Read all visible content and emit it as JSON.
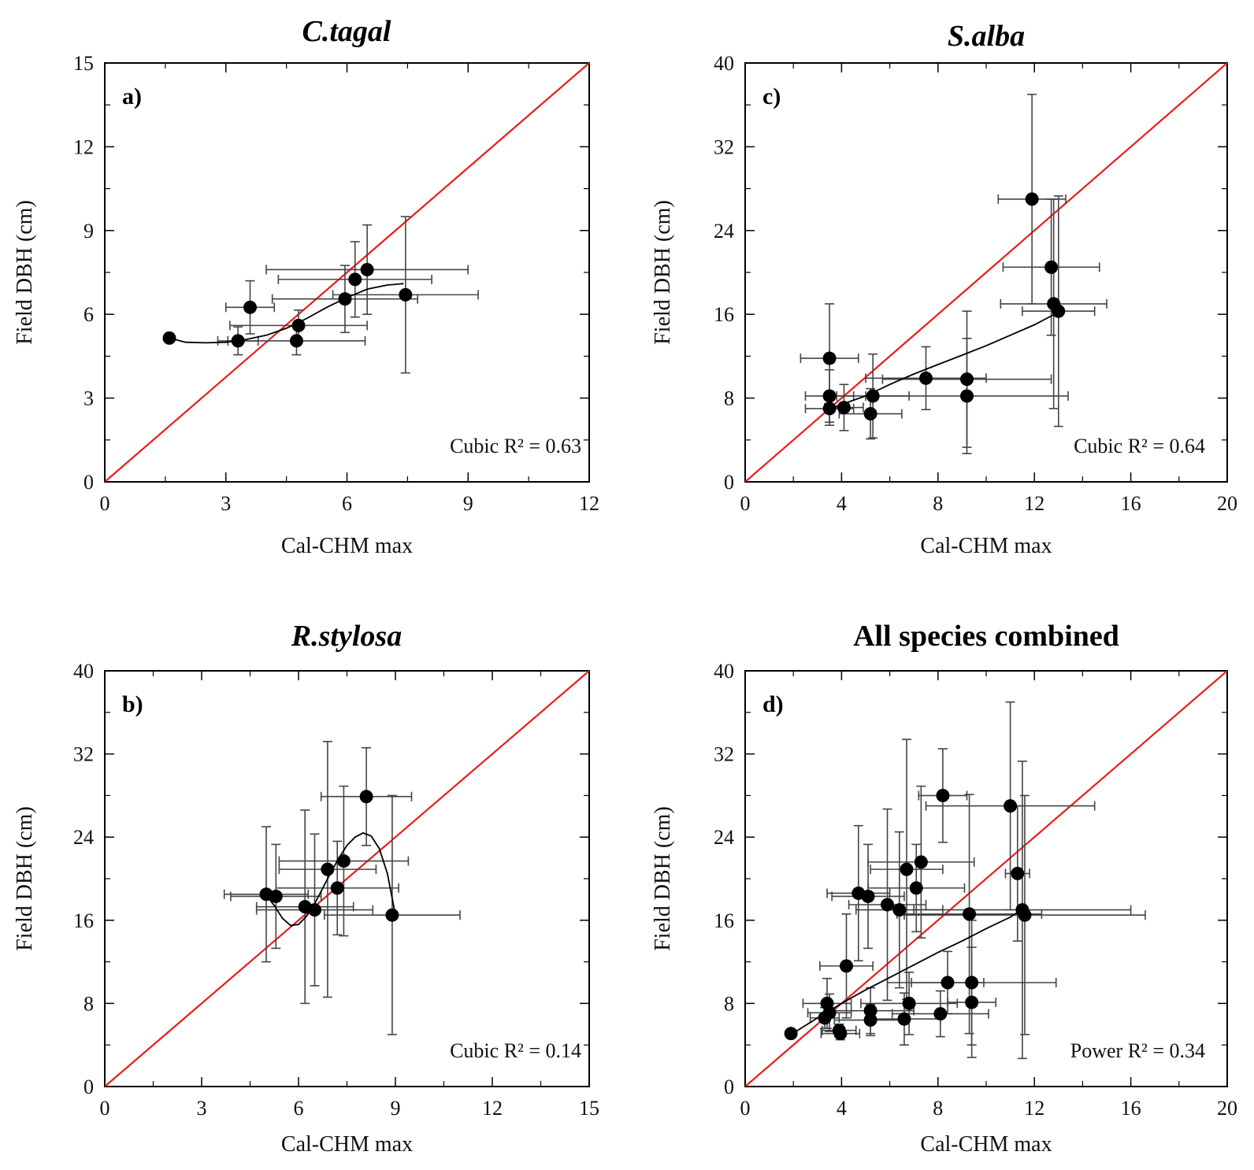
{
  "chart_data": [
    {
      "id": "a",
      "type": "scatter",
      "title": "C.tagal",
      "title_italic": true,
      "panel_label": "a)",
      "xlabel": "Cal-CHM max",
      "ylabel": "Field DBH (cm)",
      "xlim": [
        0,
        12
      ],
      "ylim": [
        0,
        15
      ],
      "xticks": [
        0,
        3,
        6,
        9,
        12
      ],
      "yticks": [
        0,
        3,
        6,
        9,
        12,
        15
      ],
      "annotation": "Cubic R² = 0.63",
      "fit_type": "cubic",
      "fit_curve": [
        [
          1.6,
          5.15
        ],
        [
          2.0,
          5.0
        ],
        [
          2.5,
          4.98
        ],
        [
          3.0,
          5.0
        ],
        [
          3.5,
          5.1
        ],
        [
          4.0,
          5.25
        ],
        [
          4.5,
          5.5
        ],
        [
          5.0,
          5.85
        ],
        [
          5.5,
          6.25
        ],
        [
          6.0,
          6.6
        ],
        [
          6.5,
          6.9
        ],
        [
          7.0,
          7.05
        ],
        [
          7.4,
          7.1
        ]
      ],
      "identity_line": true,
      "points": [
        {
          "x": 1.6,
          "y": 5.15
        },
        {
          "x": 3.3,
          "y": 5.05,
          "xerr": 0.5,
          "yerr": 0.5
        },
        {
          "x": 3.6,
          "y": 6.25,
          "xerr": 0.6,
          "yerr": 0.95
        },
        {
          "x": 4.8,
          "y": 5.6,
          "xerr": 1.7,
          "yerr": 0.55
        },
        {
          "x": 4.75,
          "y": 5.05,
          "xerr": 1.7,
          "yerr": 0.5
        },
        {
          "x": 5.95,
          "y": 6.55,
          "xerr": 1.8,
          "yerr": 1.2
        },
        {
          "x": 6.2,
          "y": 7.25,
          "xerr": 1.9,
          "yerr": 1.35
        },
        {
          "x": 6.5,
          "y": 7.6,
          "xerr": 2.5,
          "yerr": 1.6
        },
        {
          "x": 7.45,
          "y": 6.7,
          "xerr": 1.8,
          "yerr": 2.8
        }
      ]
    },
    {
      "id": "c",
      "type": "scatter",
      "title": "S.alba",
      "title_italic": true,
      "panel_label": "c)",
      "xlabel": "Cal-CHM max",
      "ylabel": "Field DBH (cm)",
      "xlim": [
        0,
        20
      ],
      "ylim": [
        0,
        40
      ],
      "xticks": [
        0,
        4,
        8,
        12,
        16,
        20
      ],
      "yticks": [
        0,
        8,
        16,
        24,
        32,
        40
      ],
      "annotation": "Cubic R² = 0.64",
      "fit_type": "cubic",
      "fit_curve": [
        [
          3.5,
          7.0
        ],
        [
          4.0,
          7.4
        ],
        [
          5.0,
          8.2
        ],
        [
          6.0,
          9.3
        ],
        [
          7.0,
          10.3
        ],
        [
          8.0,
          11.2
        ],
        [
          9.0,
          12.1
        ],
        [
          10.0,
          13.0
        ],
        [
          11.0,
          14.0
        ],
        [
          12.0,
          15.0
        ],
        [
          13.0,
          16.2
        ]
      ],
      "identity_line": true,
      "points": [
        {
          "x": 3.5,
          "y": 11.8,
          "xerr": 1.2,
          "yerr": 5.2
        },
        {
          "x": 3.5,
          "y": 8.2,
          "xerr": 1.0,
          "yerr": 2.5
        },
        {
          "x": 3.5,
          "y": 7.0,
          "xerr": 1.0,
          "yerr": 1.6
        },
        {
          "x": 4.1,
          "y": 7.1,
          "xerr": 0.8,
          "yerr": 2.2
        },
        {
          "x": 5.2,
          "y": 6.5,
          "xerr": 1.3,
          "yerr": 2.4
        },
        {
          "x": 5.3,
          "y": 8.2,
          "xerr": 1.5,
          "yerr": 4.0
        },
        {
          "x": 7.5,
          "y": 9.9,
          "xerr": 2.5,
          "yerr": 3.0
        },
        {
          "x": 9.2,
          "y": 9.8,
          "xerr": 3.5,
          "yerr": 6.5
        },
        {
          "x": 9.2,
          "y": 8.2,
          "xerr": 4.2,
          "yerr": 5.5
        },
        {
          "x": 11.9,
          "y": 27.0,
          "xerr": 1.4,
          "yerr": 10.0
        },
        {
          "x": 12.7,
          "y": 20.5,
          "xerr": 2.0,
          "yerr": 6.5
        },
        {
          "x": 12.8,
          "y": 17.0,
          "xerr": 2.2,
          "yerr": 10.0
        },
        {
          "x": 13.0,
          "y": 16.3,
          "xerr": 1.5,
          "yerr": 11.0
        }
      ]
    },
    {
      "id": "b",
      "type": "scatter",
      "title": "R.stylosa",
      "title_italic": true,
      "panel_label": "b)",
      "xlabel": "Cal-CHM max",
      "ylabel": "Field DBH (cm)",
      "xlim": [
        0,
        15
      ],
      "ylim": [
        0,
        40
      ],
      "xticks": [
        0,
        3,
        6,
        9,
        12,
        15
      ],
      "yticks": [
        0,
        8,
        16,
        24,
        32,
        40
      ],
      "annotation": "Cubic R² = 0.14",
      "fit_type": "cubic",
      "fit_curve": [
        [
          5.0,
          18.4
        ],
        [
          5.25,
          17.4
        ],
        [
          5.5,
          16.2
        ],
        [
          5.75,
          15.5
        ],
        [
          6.0,
          15.6
        ],
        [
          6.25,
          16.4
        ],
        [
          6.5,
          17.6
        ],
        [
          6.75,
          19.1
        ],
        [
          7.0,
          20.6
        ],
        [
          7.25,
          22.0
        ],
        [
          7.5,
          23.2
        ],
        [
          7.75,
          24.0
        ],
        [
          8.0,
          24.4
        ],
        [
          8.25,
          24.1
        ],
        [
          8.5,
          22.9
        ],
        [
          8.75,
          20.5
        ],
        [
          9.0,
          16.5
        ]
      ],
      "identity_line": true,
      "points": [
        {
          "x": 5.0,
          "y": 18.5,
          "xerr": 1.3,
          "yerr": 6.5
        },
        {
          "x": 5.3,
          "y": 18.3,
          "xerr": 1.4,
          "yerr": 5.0
        },
        {
          "x": 6.2,
          "y": 17.3,
          "xerr": 1.5,
          "yerr": 9.3
        },
        {
          "x": 6.5,
          "y": 17.0,
          "xerr": 1.8,
          "yerr": 7.3
        },
        {
          "x": 6.9,
          "y": 20.9,
          "xerr": 1.5,
          "yerr": 12.3
        },
        {
          "x": 7.2,
          "y": 19.1,
          "xerr": 1.9,
          "yerr": 4.5
        },
        {
          "x": 7.4,
          "y": 21.7,
          "xerr": 2.0,
          "yerr": 7.2
        },
        {
          "x": 8.1,
          "y": 27.9,
          "xerr": 1.4,
          "yerr": 4.7
        },
        {
          "x": 8.9,
          "y": 16.5,
          "xerr": 2.1,
          "yerr": 11.5
        }
      ]
    },
    {
      "id": "d",
      "type": "scatter",
      "title": "All species combined",
      "title_italic": false,
      "panel_label": "d)",
      "xlabel": "Cal-CHM max",
      "ylabel": "Field DBH (cm)",
      "xlim": [
        0,
        20
      ],
      "ylim": [
        0,
        40
      ],
      "xticks": [
        0,
        4,
        8,
        12,
        16,
        20
      ],
      "yticks": [
        0,
        8,
        16,
        24,
        32,
        40
      ],
      "annotation": "Power R² = 0.34",
      "fit_type": "power",
      "fit_curve": [
        [
          1.9,
          5.0
        ],
        [
          3.0,
          6.6
        ],
        [
          4.0,
          8.0
        ],
        [
          5.0,
          9.3
        ],
        [
          6.0,
          10.5
        ],
        [
          7.0,
          11.7
        ],
        [
          8.0,
          12.9
        ],
        [
          9.0,
          14.0
        ],
        [
          10.0,
          15.2
        ],
        [
          11.0,
          16.3
        ],
        [
          11.6,
          17.2
        ]
      ],
      "identity_line": true,
      "points": [
        {
          "x": 1.9,
          "y": 5.1
        },
        {
          "x": 3.3,
          "y": 6.6,
          "xerr": 0.6,
          "yerr": 1.0
        },
        {
          "x": 3.4,
          "y": 8.0,
          "xerr": 1.0,
          "yerr": 2.4
        },
        {
          "x": 3.5,
          "y": 7.1,
          "xerr": 0.9,
          "yerr": 1.8
        },
        {
          "x": 3.9,
          "y": 5.4,
          "xerr": 0.7,
          "yerr": 0.6
        },
        {
          "x": 3.95,
          "y": 5.1,
          "xerr": 0.8,
          "yerr": 0.6
        },
        {
          "x": 4.2,
          "y": 11.6,
          "xerr": 1.1,
          "yerr": 5.0
        },
        {
          "x": 4.7,
          "y": 18.6,
          "xerr": 1.3,
          "yerr": 6.5
        },
        {
          "x": 5.1,
          "y": 18.3,
          "xerr": 1.5,
          "yerr": 5.0
        },
        {
          "x": 5.2,
          "y": 7.3,
          "xerr": 1.8,
          "yerr": 2.2
        },
        {
          "x": 5.2,
          "y": 6.4,
          "xerr": 1.5,
          "yerr": 1.5
        },
        {
          "x": 5.9,
          "y": 17.5,
          "xerr": 1.6,
          "yerr": 9.2
        },
        {
          "x": 6.4,
          "y": 17.0,
          "xerr": 1.8,
          "yerr": 7.5
        },
        {
          "x": 6.6,
          "y": 6.5,
          "xerr": 1.5,
          "yerr": 2.5
        },
        {
          "x": 6.7,
          "y": 20.9,
          "xerr": 1.5,
          "yerr": 12.5
        },
        {
          "x": 6.8,
          "y": 8.0,
          "xerr": 2.0,
          "yerr": 3.0
        },
        {
          "x": 7.1,
          "y": 19.1,
          "xerr": 2.0,
          "yerr": 4.2
        },
        {
          "x": 7.3,
          "y": 21.6,
          "xerr": 2.2,
          "yerr": 7.3
        },
        {
          "x": 8.2,
          "y": 28.0,
          "xerr": 1.0,
          "yerr": 4.5
        },
        {
          "x": 8.1,
          "y": 7.0,
          "xerr": 2.0,
          "yerr": 2.2
        },
        {
          "x": 8.4,
          "y": 10.0,
          "xerr": 1.5,
          "yerr": 3.0
        },
        {
          "x": 9.3,
          "y": 16.6,
          "xerr": 3.0,
          "yerr": 11.5
        },
        {
          "x": 9.4,
          "y": 10.0,
          "xerr": 3.5,
          "yerr": 6.0
        },
        {
          "x": 9.4,
          "y": 8.1,
          "xerr": 1.0,
          "yerr": 5.3
        },
        {
          "x": 11.0,
          "y": 27.0,
          "xerr": 3.5,
          "yerr": 10.0
        },
        {
          "x": 11.3,
          "y": 20.5,
          "xerr": 0.5,
          "yerr": 6.5
        },
        {
          "x": 11.5,
          "y": 17.0,
          "xerr": 4.5,
          "yerr": 14.3
        },
        {
          "x": 11.6,
          "y": 16.5,
          "xerr": 5.0,
          "yerr": 11.5
        }
      ]
    }
  ],
  "colors": {
    "identity_line": "#ee1c1c",
    "fit_line": "#000000",
    "points": "#000000",
    "error_bars": "#444444",
    "axes": "#000000"
  }
}
